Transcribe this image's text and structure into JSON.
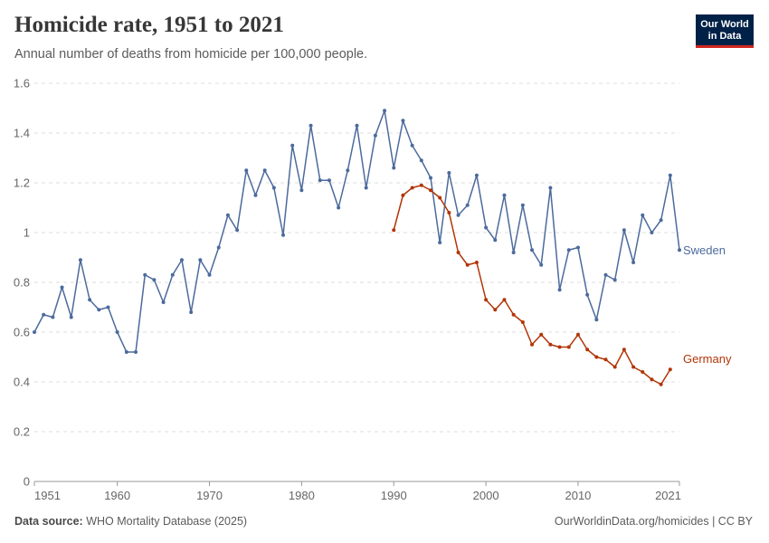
{
  "header": {
    "title": "Homicide rate, 1951 to 2021",
    "subtitle": "Annual number of deaths from homicide per 100,000 people."
  },
  "logo": {
    "line1": "Our World",
    "line2": "in Data"
  },
  "footer": {
    "source_label": "Data source:",
    "source_value": "WHO Mortality Database (2025)",
    "link": "OurWorldinData.org/homicides | CC BY"
  },
  "colors": {
    "Sweden": "#4c6a9c",
    "Germany": "#b13507",
    "grid": "#dddddd"
  },
  "chart_data": {
    "type": "line",
    "title": "Homicide rate, 1951 to 2021",
    "subtitle": "Annual number of deaths from homicide per 100,000 people.",
    "xlim": [
      1951,
      2021
    ],
    "ylim": [
      0,
      1.6
    ],
    "x_ticks": [
      1951,
      1960,
      1970,
      1980,
      1990,
      2000,
      2010,
      2021
    ],
    "y_ticks": [
      0,
      0.2,
      0.4,
      0.6,
      0.8,
      1,
      1.2,
      1.4,
      1.6
    ],
    "grid": "horizontal dashed",
    "series": [
      {
        "name": "Sweden",
        "x": [
          1951,
          1952,
          1953,
          1954,
          1955,
          1956,
          1957,
          1958,
          1959,
          1960,
          1961,
          1962,
          1963,
          1964,
          1965,
          1966,
          1967,
          1968,
          1969,
          1970,
          1971,
          1972,
          1973,
          1974,
          1975,
          1976,
          1977,
          1978,
          1979,
          1980,
          1981,
          1982,
          1983,
          1984,
          1985,
          1986,
          1987,
          1988,
          1989,
          1990,
          1991,
          1992,
          1993,
          1994,
          1995,
          1996,
          1997,
          1998,
          1999,
          2000,
          2001,
          2002,
          2003,
          2004,
          2005,
          2006,
          2007,
          2008,
          2009,
          2010,
          2011,
          2012,
          2013,
          2014,
          2015,
          2016,
          2017,
          2018,
          2019,
          2020,
          2021
        ],
        "values": [
          0.6,
          0.67,
          0.66,
          0.78,
          0.66,
          0.89,
          0.73,
          0.69,
          0.7,
          0.6,
          0.52,
          0.52,
          0.83,
          0.81,
          0.72,
          0.83,
          0.89,
          0.68,
          0.89,
          0.83,
          0.94,
          1.07,
          1.01,
          1.25,
          1.15,
          1.25,
          1.18,
          0.99,
          1.35,
          1.17,
          1.43,
          1.21,
          1.21,
          1.1,
          1.25,
          1.43,
          1.18,
          1.39,
          1.49,
          1.26,
          1.45,
          1.35,
          1.29,
          1.22,
          0.96,
          1.24,
          1.07,
          1.11,
          1.23,
          1.02,
          0.97,
          1.15,
          0.92,
          1.11,
          0.93,
          0.87,
          1.18,
          0.77,
          0.93,
          0.94,
          0.75,
          0.65,
          0.83,
          0.81,
          1.01,
          0.88,
          1.07,
          1.0,
          1.05,
          1.23,
          0.93
        ]
      },
      {
        "name": "Germany",
        "x": [
          1990,
          1991,
          1992,
          1993,
          1994,
          1995,
          1996,
          1997,
          1998,
          1999,
          2000,
          2001,
          2002,
          2003,
          2004,
          2005,
          2006,
          2007,
          2008,
          2009,
          2010,
          2011,
          2012,
          2013,
          2014,
          2015,
          2016,
          2017,
          2018,
          2019,
          2020
        ],
        "values": [
          1.01,
          1.15,
          1.18,
          1.19,
          1.17,
          1.14,
          1.08,
          0.92,
          0.87,
          0.88,
          0.73,
          0.69,
          0.73,
          0.67,
          0.64,
          0.55,
          0.59,
          0.55,
          0.54,
          0.54,
          0.59,
          0.53,
          0.5,
          0.49,
          0.46,
          0.53,
          0.46,
          0.44,
          0.41,
          0.39,
          0.45
        ]
      }
    ]
  }
}
